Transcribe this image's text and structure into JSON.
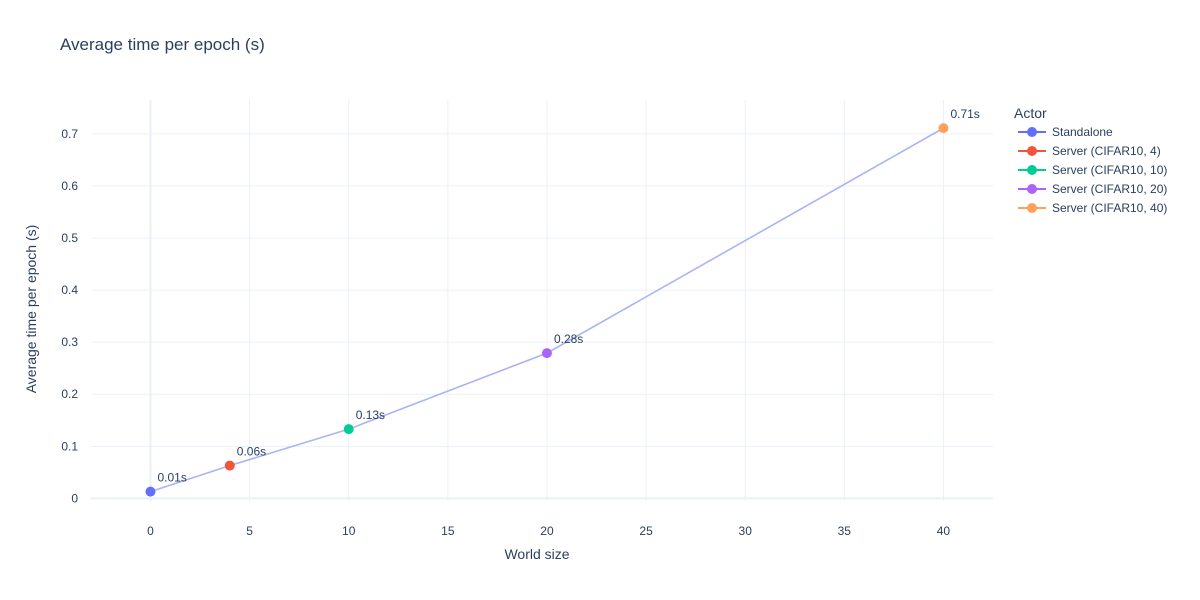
{
  "chart_data": {
    "type": "line",
    "title": "Average time per epoch (s)",
    "xlabel": "World size",
    "ylabel": "Average time per epoch (s)",
    "xlim": [
      -3,
      42.5
    ],
    "ylim": [
      -0.005,
      0.765
    ],
    "x_ticks": [
      0,
      5,
      10,
      15,
      20,
      25,
      30,
      35,
      40
    ],
    "y_ticks": [
      0,
      0.1,
      0.2,
      0.3,
      0.4,
      0.5,
      0.6,
      0.7
    ],
    "grid": true,
    "line_color": "#aab4f5",
    "legend": {
      "title": "Actor",
      "placement": "right"
    },
    "series": [
      {
        "name": "Standalone",
        "color": "#636efa",
        "x": [
          0
        ],
        "y": [
          0.013
        ],
        "label": "0.01s"
      },
      {
        "name": "Server (CIFAR10, 4)",
        "color": "#ef553b",
        "x": [
          4
        ],
        "y": [
          0.063
        ],
        "label": "0.06s"
      },
      {
        "name": "Server (CIFAR10, 10)",
        "color": "#00cc96",
        "x": [
          10
        ],
        "y": [
          0.133
        ],
        "label": "0.13s"
      },
      {
        "name": "Server (CIFAR10, 20)",
        "color": "#ab63fa",
        "x": [
          20
        ],
        "y": [
          0.279
        ],
        "label": "0.28s"
      },
      {
        "name": "Server (CIFAR10, 40)",
        "color": "#ffa15a",
        "x": [
          40
        ],
        "y": [
          0.711
        ],
        "label": "0.71s"
      }
    ]
  }
}
